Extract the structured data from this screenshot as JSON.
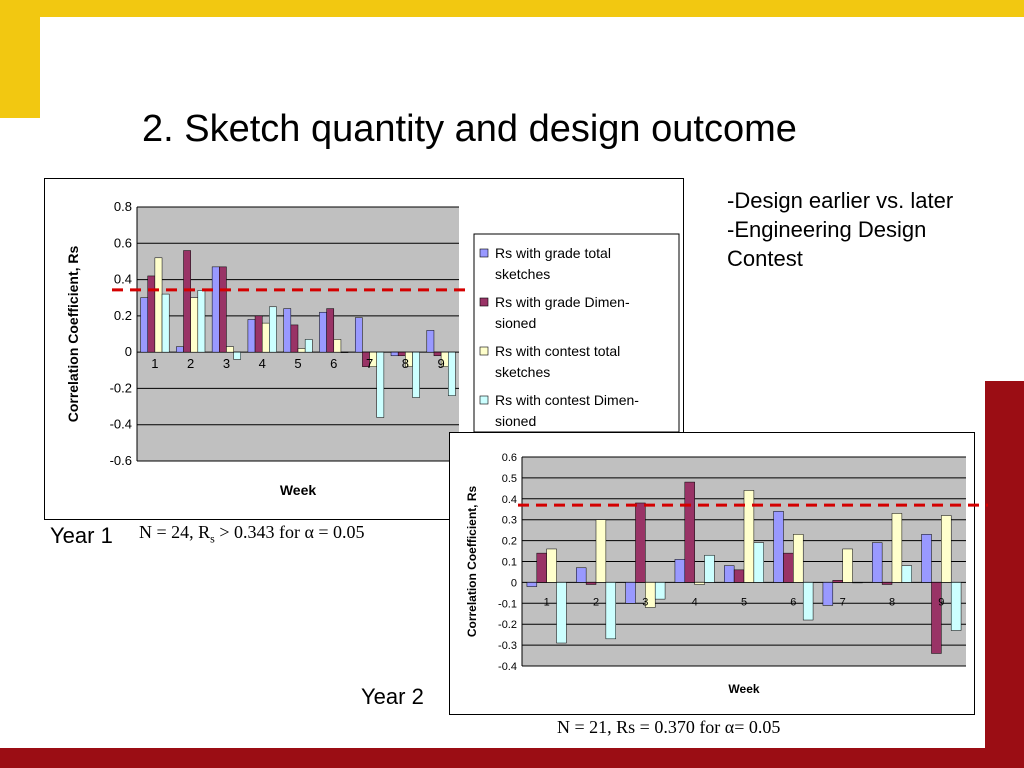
{
  "slide": {
    "title": "2. Sketch quantity and design outcome",
    "bullets": [
      "-Design earlier vs. later",
      "-Engineering Design",
      "Contest"
    ],
    "year1_label": "Year 1",
    "year2_label": "Year 2",
    "year1_note": {
      "prefix": "N = 24, R",
      "sub": "s",
      "suffix": " > 0.343 for α = 0.05"
    },
    "year2_note": "N = 21, Rs = 0.370 for α= 0.05"
  },
  "colors": {
    "accent_yellow": "#f2c811",
    "accent_red": "#9b0d14",
    "plot_bg": "#c0c0c0",
    "threshold": "#d40000",
    "series": [
      "#9999ff",
      "#993366",
      "#ffffcc",
      "#ccffff"
    ]
  },
  "chart_data": [
    {
      "type": "bar",
      "xlabel": "Week",
      "ylabel": "Correlation Coefficient, Rs",
      "ylim": [
        -0.6,
        0.8
      ],
      "yticks": [
        "0.8",
        "0.6",
        "0.4",
        "0.2",
        "0",
        "-0.2",
        "-0.4",
        "-0.6"
      ],
      "categories": [
        "1",
        "2",
        "3",
        "4",
        "5",
        "6",
        "7",
        "8",
        "9"
      ],
      "threshold": 0.343,
      "grid": true,
      "legend": "right",
      "series": [
        {
          "name": "Rs with grade total sketches",
          "values": [
            0.3,
            0.03,
            0.47,
            0.18,
            0.24,
            0.22,
            0.19,
            -0.02,
            0.12
          ]
        },
        {
          "name": "Rs with grade Dimensioned",
          "values": [
            0.42,
            0.56,
            0.47,
            0.2,
            0.15,
            0.24,
            -0.08,
            -0.02,
            -0.02
          ]
        },
        {
          "name": "Rs with contest total sketches",
          "values": [
            0.52,
            0.3,
            0.03,
            0.16,
            0.02,
            0.07,
            -0.08,
            -0.08,
            -0.08
          ]
        },
        {
          "name": "Rs with contest Dimensioned",
          "values": [
            0.32,
            0.34,
            -0.04,
            0.25,
            0.07,
            0.0,
            -0.36,
            -0.25,
            -0.24
          ]
        }
      ],
      "legend_entries": [
        [
          "Rs with grade total",
          "sketches"
        ],
        [
          "Rs with grade Dimen-",
          "sioned"
        ],
        [
          "Rs with contest total",
          "sketches"
        ],
        [
          "Rs with contest Dimen-",
          "sioned"
        ]
      ]
    },
    {
      "type": "bar",
      "xlabel": "Week",
      "ylabel": "Correlation Coefficient, Rs",
      "ylim": [
        -0.4,
        0.6
      ],
      "yticks": [
        "0.6",
        "0.5",
        "0.4",
        "0.3",
        "0.2",
        "0.1",
        "0",
        "-0.1",
        "-0.2",
        "-0.3",
        "-0.4"
      ],
      "categories": [
        "1",
        "2",
        "3",
        "4",
        "5",
        "6",
        "7",
        "8",
        "9"
      ],
      "threshold": 0.37,
      "grid": true,
      "series": [
        {
          "values": [
            -0.02,
            0.07,
            -0.1,
            0.11,
            0.08,
            0.34,
            -0.11,
            0.19,
            0.23
          ]
        },
        {
          "values": [
            0.14,
            -0.01,
            0.38,
            0.48,
            0.06,
            0.14,
            0.01,
            -0.01,
            -0.34
          ]
        },
        {
          "values": [
            0.16,
            0.3,
            -0.12,
            -0.01,
            0.44,
            0.23,
            0.16,
            0.33,
            0.32
          ]
        },
        {
          "values": [
            -0.29,
            -0.27,
            -0.08,
            0.13,
            0.19,
            -0.18,
            0.0,
            0.08,
            -0.23
          ]
        }
      ]
    }
  ]
}
